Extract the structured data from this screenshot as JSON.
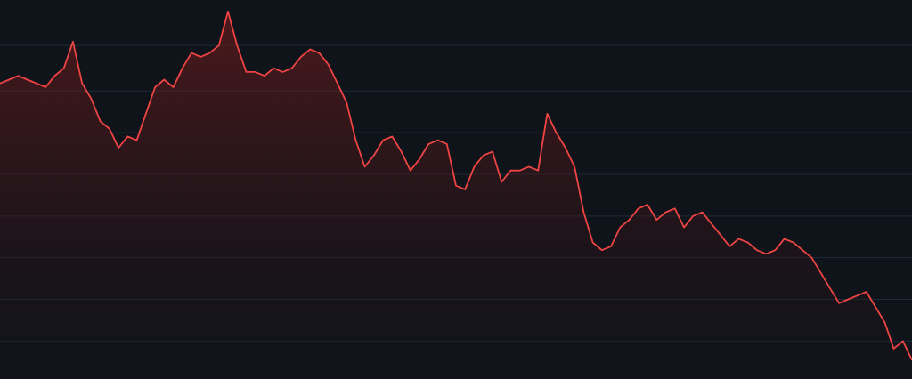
{
  "colors": {
    "background": "#0f141a",
    "line": "#ef4444",
    "fill_top": "#7f1d1d",
    "fill_bottom": "#1a1016",
    "grid": "#1e2a36"
  },
  "chart_data": {
    "type": "area",
    "title": "",
    "xlabel": "",
    "ylabel": "",
    "grid": true,
    "legend": "none",
    "xlim": [
      0,
      100
    ],
    "ylim": [
      0,
      100
    ],
    "gridlines_y": [
      10,
      21,
      32,
      43,
      54,
      65,
      76,
      88
    ],
    "series": [
      {
        "x": [
          0,
          1,
          2,
          3,
          4,
          5,
          6,
          7,
          8,
          9,
          10,
          11,
          12,
          13,
          14,
          15,
          16,
          17,
          18,
          19,
          20,
          21,
          22,
          23,
          24,
          25,
          26,
          27,
          28,
          29,
          30,
          31,
          32,
          33,
          34,
          35,
          36,
          37,
          38,
          39,
          40,
          41,
          42,
          43,
          44,
          45,
          46,
          47,
          48,
          49,
          50,
          51,
          52,
          53,
          54,
          55,
          56,
          57,
          58,
          59,
          60,
          61,
          62,
          63,
          64,
          65,
          66,
          67,
          68,
          69,
          70,
          71,
          72,
          73,
          74,
          75,
          76,
          77,
          78,
          79,
          80,
          81,
          82,
          83,
          84,
          85,
          86,
          87,
          88,
          89,
          90,
          91,
          92,
          93,
          94,
          95,
          96,
          97,
          98,
          99,
          100
        ],
        "y": [
          78,
          79,
          80,
          79,
          78,
          77,
          80,
          82,
          89,
          78,
          74,
          68,
          66,
          61,
          64,
          63,
          70,
          77,
          79,
          77,
          82,
          86,
          85,
          86,
          88,
          97,
          88,
          81,
          81,
          80,
          82,
          81,
          82,
          85,
          87,
          86,
          83,
          78,
          73,
          63,
          56,
          59,
          63,
          64,
          60,
          55,
          58,
          62,
          63,
          62,
          51,
          50,
          56,
          59,
          60,
          52,
          55,
          55,
          56,
          55,
          70,
          65,
          61,
          56,
          44,
          36,
          34,
          35,
          40,
          42,
          45,
          46,
          42,
          44,
          45,
          40,
          43,
          44,
          41,
          38,
          35,
          37,
          36,
          34,
          33,
          34,
          37,
          36,
          34,
          32,
          28,
          24,
          20,
          21,
          22,
          23,
          19,
          15,
          8,
          10,
          5
        ]
      }
    ]
  }
}
